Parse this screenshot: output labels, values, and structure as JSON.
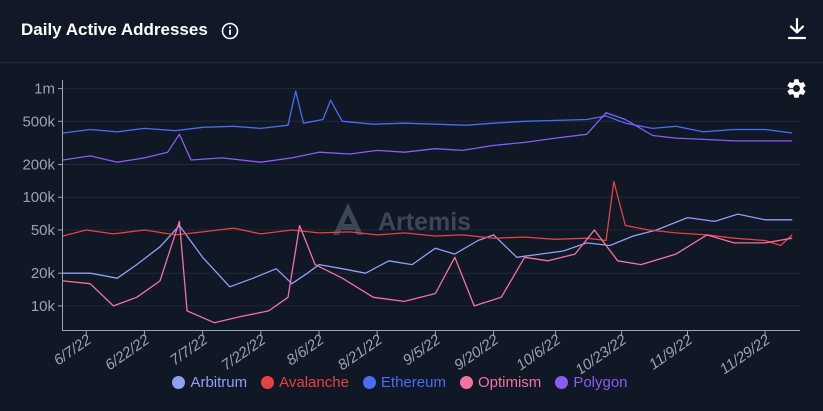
{
  "header": {
    "title": "Daily Active Addresses",
    "info_icon": "info-circle-icon",
    "download_icon": "download-icon",
    "settings_icon": "gear-icon"
  },
  "watermark": "Artemis",
  "chart_data": {
    "type": "line",
    "y_scale": "log",
    "ylim": [
      6000,
      1200000
    ],
    "y_ticks": [
      {
        "value": 1000000,
        "label": "1m"
      },
      {
        "value": 500000,
        "label": "500k"
      },
      {
        "value": 200000,
        "label": "200k"
      },
      {
        "value": 100000,
        "label": "100k"
      },
      {
        "value": 50000,
        "label": "50k"
      },
      {
        "value": 20000,
        "label": "20k"
      },
      {
        "value": 10000,
        "label": "10k"
      }
    ],
    "x_range": [
      "2022-06-01",
      "2022-12-08"
    ],
    "x_ticks": [
      {
        "date": "2022-06-07",
        "label": "6/7/22"
      },
      {
        "date": "2022-06-22",
        "label": "6/22/22"
      },
      {
        "date": "2022-07-07",
        "label": "7/7/22"
      },
      {
        "date": "2022-07-22",
        "label": "7/22/22"
      },
      {
        "date": "2022-08-06",
        "label": "8/6/22"
      },
      {
        "date": "2022-08-21",
        "label": "8/21/22"
      },
      {
        "date": "2022-09-05",
        "label": "9/5/22"
      },
      {
        "date": "2022-09-20",
        "label": "9/20/22"
      },
      {
        "date": "2022-10-06",
        "label": "10/6/22"
      },
      {
        "date": "2022-10-23",
        "label": "10/23/22"
      },
      {
        "date": "2022-11-09",
        "label": "11/9/22"
      },
      {
        "date": "2022-11-29",
        "label": "11/29/22"
      }
    ],
    "grid": true,
    "legend_position": "bottom",
    "series": [
      {
        "name": "Arbitrum",
        "color": "#8fa0f5",
        "points": [
          [
            "2022-06-01",
            20000
          ],
          [
            "2022-06-08",
            20000
          ],
          [
            "2022-06-15",
            18000
          ],
          [
            "2022-06-20",
            24000
          ],
          [
            "2022-06-26",
            35000
          ],
          [
            "2022-07-01",
            55000
          ],
          [
            "2022-07-07",
            28000
          ],
          [
            "2022-07-14",
            15000
          ],
          [
            "2022-07-20",
            18000
          ],
          [
            "2022-07-26",
            22000
          ],
          [
            "2022-07-30",
            16000
          ],
          [
            "2022-08-03",
            20000
          ],
          [
            "2022-08-06",
            24000
          ],
          [
            "2022-08-12",
            22000
          ],
          [
            "2022-08-18",
            20000
          ],
          [
            "2022-08-24",
            26000
          ],
          [
            "2022-08-30",
            24000
          ],
          [
            "2022-09-05",
            34000
          ],
          [
            "2022-09-10",
            30000
          ],
          [
            "2022-09-16",
            40000
          ],
          [
            "2022-09-20",
            45000
          ],
          [
            "2022-09-26",
            28000
          ],
          [
            "2022-10-02",
            30000
          ],
          [
            "2022-10-08",
            32000
          ],
          [
            "2022-10-14",
            38000
          ],
          [
            "2022-10-20",
            36000
          ],
          [
            "2022-10-26",
            44000
          ],
          [
            "2022-11-01",
            50000
          ],
          [
            "2022-11-09",
            65000
          ],
          [
            "2022-11-16",
            60000
          ],
          [
            "2022-11-22",
            70000
          ],
          [
            "2022-11-29",
            62000
          ],
          [
            "2022-12-06",
            62000
          ]
        ]
      },
      {
        "name": "Avalanche",
        "color": "#e84142",
        "points": [
          [
            "2022-06-01",
            44000
          ],
          [
            "2022-06-07",
            50000
          ],
          [
            "2022-06-14",
            46000
          ],
          [
            "2022-06-22",
            50000
          ],
          [
            "2022-06-30",
            45000
          ],
          [
            "2022-07-07",
            48000
          ],
          [
            "2022-07-15",
            52000
          ],
          [
            "2022-07-22",
            46000
          ],
          [
            "2022-07-30",
            50000
          ],
          [
            "2022-08-06",
            47000
          ],
          [
            "2022-08-14",
            48000
          ],
          [
            "2022-08-21",
            45000
          ],
          [
            "2022-08-28",
            47000
          ],
          [
            "2022-09-05",
            44000
          ],
          [
            "2022-09-12",
            45000
          ],
          [
            "2022-09-20",
            42000
          ],
          [
            "2022-09-28",
            43000
          ],
          [
            "2022-10-06",
            41000
          ],
          [
            "2022-10-14",
            42000
          ],
          [
            "2022-10-19",
            40000
          ],
          [
            "2022-10-21",
            140000
          ],
          [
            "2022-10-24",
            55000
          ],
          [
            "2022-10-30",
            50000
          ],
          [
            "2022-11-06",
            47000
          ],
          [
            "2022-11-14",
            45000
          ],
          [
            "2022-11-21",
            42000
          ],
          [
            "2022-11-29",
            40000
          ],
          [
            "2022-12-03",
            36000
          ],
          [
            "2022-12-06",
            45000
          ]
        ]
      },
      {
        "name": "Ethereum",
        "color": "#4a6cf7",
        "points": [
          [
            "2022-06-01",
            390000
          ],
          [
            "2022-06-08",
            420000
          ],
          [
            "2022-06-15",
            400000
          ],
          [
            "2022-06-22",
            430000
          ],
          [
            "2022-06-30",
            410000
          ],
          [
            "2022-07-07",
            440000
          ],
          [
            "2022-07-15",
            450000
          ],
          [
            "2022-07-22",
            430000
          ],
          [
            "2022-07-29",
            460000
          ],
          [
            "2022-07-31",
            950000
          ],
          [
            "2022-08-02",
            480000
          ],
          [
            "2022-08-07",
            520000
          ],
          [
            "2022-08-09",
            780000
          ],
          [
            "2022-08-12",
            500000
          ],
          [
            "2022-08-20",
            470000
          ],
          [
            "2022-08-28",
            480000
          ],
          [
            "2022-09-05",
            470000
          ],
          [
            "2022-09-13",
            460000
          ],
          [
            "2022-09-20",
            480000
          ],
          [
            "2022-09-28",
            500000
          ],
          [
            "2022-10-06",
            510000
          ],
          [
            "2022-10-14",
            520000
          ],
          [
            "2022-10-19",
            560000
          ],
          [
            "2022-10-24",
            480000
          ],
          [
            "2022-10-31",
            430000
          ],
          [
            "2022-11-06",
            450000
          ],
          [
            "2022-11-13",
            400000
          ],
          [
            "2022-11-21",
            420000
          ],
          [
            "2022-11-29",
            420000
          ],
          [
            "2022-12-06",
            390000
          ]
        ]
      },
      {
        "name": "Optimism",
        "color": "#f472a0",
        "points": [
          [
            "2022-06-01",
            17000
          ],
          [
            "2022-06-08",
            16000
          ],
          [
            "2022-06-14",
            10000
          ],
          [
            "2022-06-20",
            12000
          ],
          [
            "2022-06-26",
            17000
          ],
          [
            "2022-07-01",
            60000
          ],
          [
            "2022-07-03",
            9000
          ],
          [
            "2022-07-10",
            7000
          ],
          [
            "2022-07-17",
            8000
          ],
          [
            "2022-07-24",
            9000
          ],
          [
            "2022-07-29",
            12000
          ],
          [
            "2022-08-01",
            55000
          ],
          [
            "2022-08-05",
            24000
          ],
          [
            "2022-08-12",
            18000
          ],
          [
            "2022-08-20",
            12000
          ],
          [
            "2022-08-28",
            11000
          ],
          [
            "2022-09-05",
            13000
          ],
          [
            "2022-09-10",
            28000
          ],
          [
            "2022-09-15",
            10000
          ],
          [
            "2022-09-22",
            12000
          ],
          [
            "2022-09-28",
            28000
          ],
          [
            "2022-10-04",
            26000
          ],
          [
            "2022-10-11",
            30000
          ],
          [
            "2022-10-16",
            50000
          ],
          [
            "2022-10-22",
            26000
          ],
          [
            "2022-10-28",
            24000
          ],
          [
            "2022-11-06",
            30000
          ],
          [
            "2022-11-14",
            45000
          ],
          [
            "2022-11-21",
            38000
          ],
          [
            "2022-11-29",
            38000
          ],
          [
            "2022-12-06",
            42000
          ]
        ]
      },
      {
        "name": "Polygon",
        "color": "#8a5cf6",
        "points": [
          [
            "2022-06-01",
            220000
          ],
          [
            "2022-06-08",
            240000
          ],
          [
            "2022-06-15",
            210000
          ],
          [
            "2022-06-22",
            230000
          ],
          [
            "2022-06-28",
            260000
          ],
          [
            "2022-07-01",
            380000
          ],
          [
            "2022-07-04",
            220000
          ],
          [
            "2022-07-12",
            230000
          ],
          [
            "2022-07-22",
            210000
          ],
          [
            "2022-07-30",
            230000
          ],
          [
            "2022-08-06",
            260000
          ],
          [
            "2022-08-14",
            250000
          ],
          [
            "2022-08-21",
            270000
          ],
          [
            "2022-08-28",
            260000
          ],
          [
            "2022-09-05",
            280000
          ],
          [
            "2022-09-12",
            270000
          ],
          [
            "2022-09-20",
            300000
          ],
          [
            "2022-09-28",
            320000
          ],
          [
            "2022-10-06",
            350000
          ],
          [
            "2022-10-14",
            380000
          ],
          [
            "2022-10-19",
            600000
          ],
          [
            "2022-10-24",
            520000
          ],
          [
            "2022-10-31",
            370000
          ],
          [
            "2022-11-06",
            350000
          ],
          [
            "2022-11-14",
            340000
          ],
          [
            "2022-11-21",
            330000
          ],
          [
            "2022-11-29",
            330000
          ],
          [
            "2022-12-06",
            330000
          ]
        ]
      }
    ]
  }
}
